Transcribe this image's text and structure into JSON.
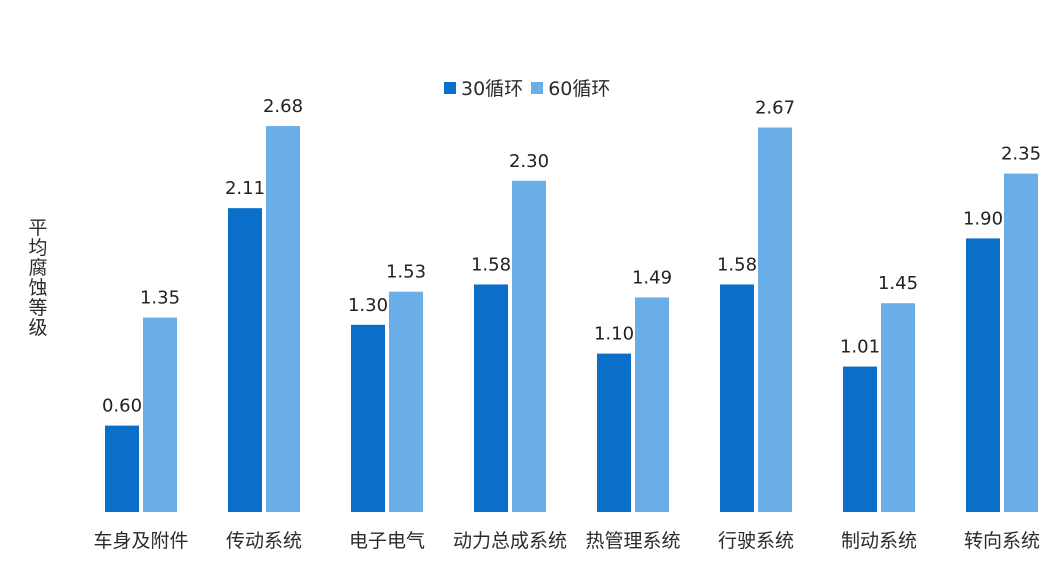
{
  "chart_data": {
    "type": "bar",
    "ylabel": "平均腐蚀等级",
    "categories": [
      "车身及附件",
      "传动系统",
      "电子电气",
      "动力总成系统",
      "热管理系统",
      "行驶系统",
      "制动系统",
      "转向系统"
    ],
    "series": [
      {
        "name": "30循环",
        "color": "#0a6fc8",
        "values": [
          0.6,
          2.11,
          1.3,
          1.58,
          1.1,
          1.58,
          1.01,
          1.9
        ],
        "labels": [
          "0.60",
          "2.11",
          "1.30",
          "1.58",
          "1.10",
          "1.58",
          "1.01",
          "1.90"
        ]
      },
      {
        "name": "60循环",
        "color": "#6aaee8",
        "values": [
          1.35,
          2.68,
          1.53,
          2.3,
          1.49,
          2.67,
          1.45,
          2.35
        ],
        "labels": [
          "1.35",
          "2.68",
          "1.53",
          "2.30",
          "1.49",
          "2.67",
          "1.45",
          "2.35"
        ]
      }
    ],
    "ylim": [
      0,
      2.8
    ],
    "grid": false,
    "legend_position": "top-center"
  }
}
